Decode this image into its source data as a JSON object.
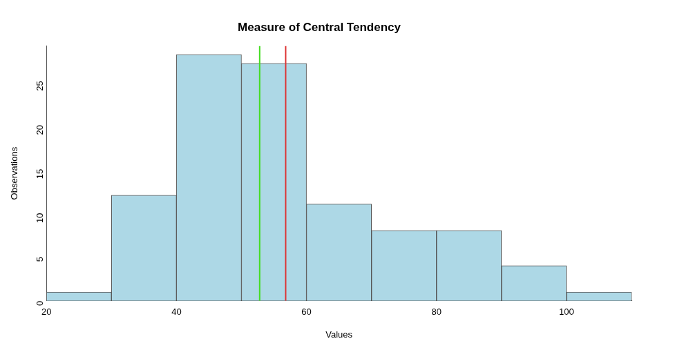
{
  "chart_data": {
    "type": "histogram",
    "title": "Measure of Central Tendency",
    "x_label": "Values",
    "y_label": "Observations",
    "bins": [
      20,
      30,
      40,
      50,
      60,
      70,
      80,
      90,
      100,
      110
    ],
    "counts": [
      1,
      12,
      28,
      27,
      11,
      8,
      8,
      4,
      1
    ],
    "color": "#add8e6",
    "xlim": [
      20,
      110
    ],
    "xticks": [
      20,
      40,
      60,
      80,
      100
    ],
    "ylim": [
      0,
      29
    ],
    "yticks": [
      0,
      5,
      10,
      15,
      20,
      25
    ],
    "grid": false,
    "vlines": [
      {
        "x": 52.8,
        "color": "#44dd22"
      },
      {
        "x": 56.8,
        "color": "#dd3333"
      }
    ]
  }
}
